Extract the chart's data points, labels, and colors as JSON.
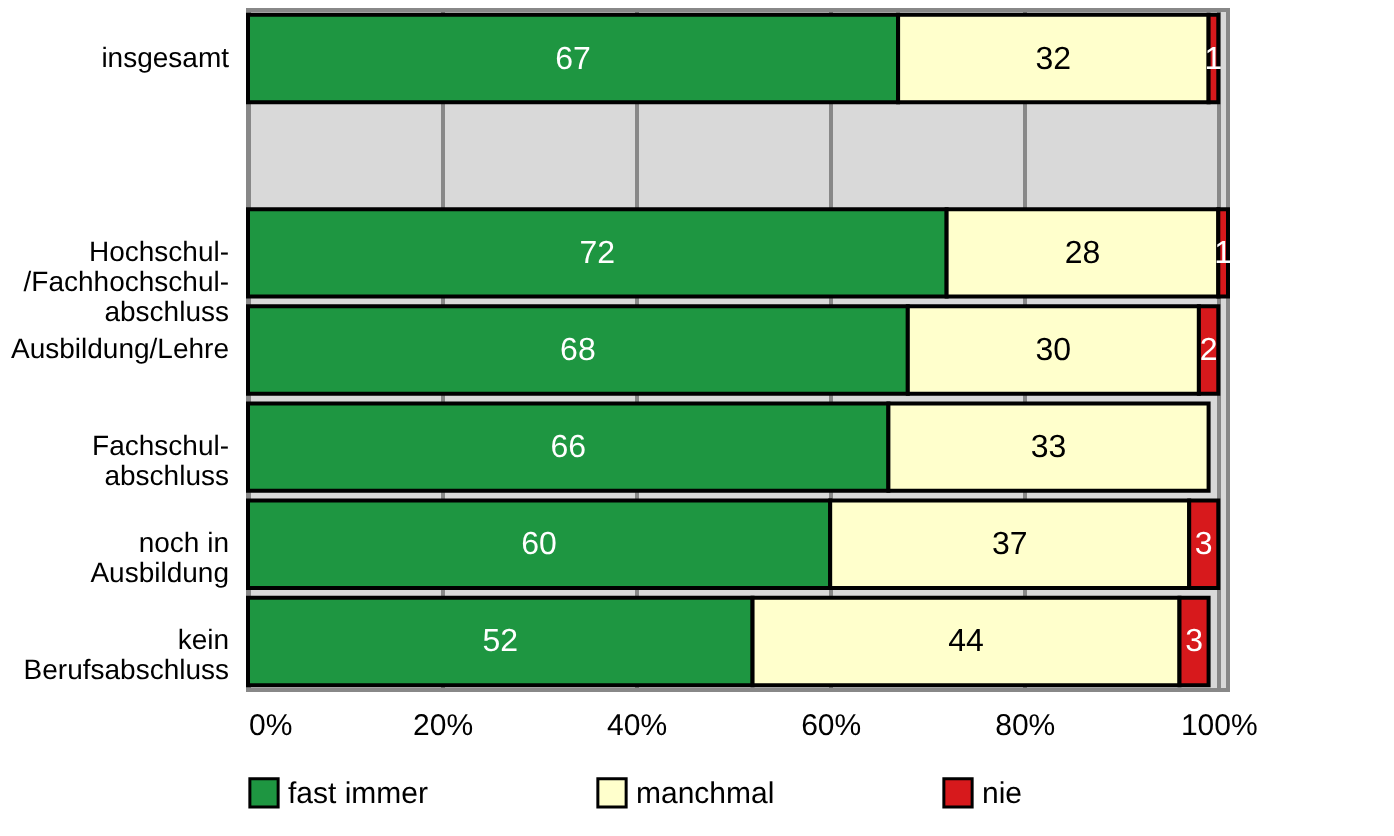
{
  "chart_data": {
    "type": "bar",
    "orientation": "horizontal",
    "stacked": true,
    "categories": [
      "insgesamt",
      null,
      "Hochschul-\n/Fachhochschul-\nabschluss",
      "Ausbildung/Lehre",
      "Fachschul-\nabschluss",
      "noch in\nAusbildung",
      "kein\nBerufsabschluss"
    ],
    "series": [
      {
        "name": "fast immer",
        "color": "#1e9641",
        "values": [
          67,
          null,
          72,
          68,
          66,
          60,
          52
        ]
      },
      {
        "name": "manchmal",
        "color": "#ffffcc",
        "values": [
          32,
          null,
          28,
          30,
          33,
          37,
          44
        ]
      },
      {
        "name": "nie",
        "color": "#d7191c",
        "values": [
          1,
          null,
          1,
          2,
          null,
          3,
          3
        ]
      }
    ],
    "xlim": [
      0,
      101
    ],
    "xticks": [
      {
        "value": 0,
        "label": "0%"
      },
      {
        "value": 20,
        "label": "20%"
      },
      {
        "value": 40,
        "label": "40%"
      },
      {
        "value": 60,
        "label": "60%"
      },
      {
        "value": 80,
        "label": "80%"
      },
      {
        "value": 100,
        "label": "100%"
      }
    ],
    "grid": "x",
    "legend": "bottom",
    "data_labels": true
  }
}
